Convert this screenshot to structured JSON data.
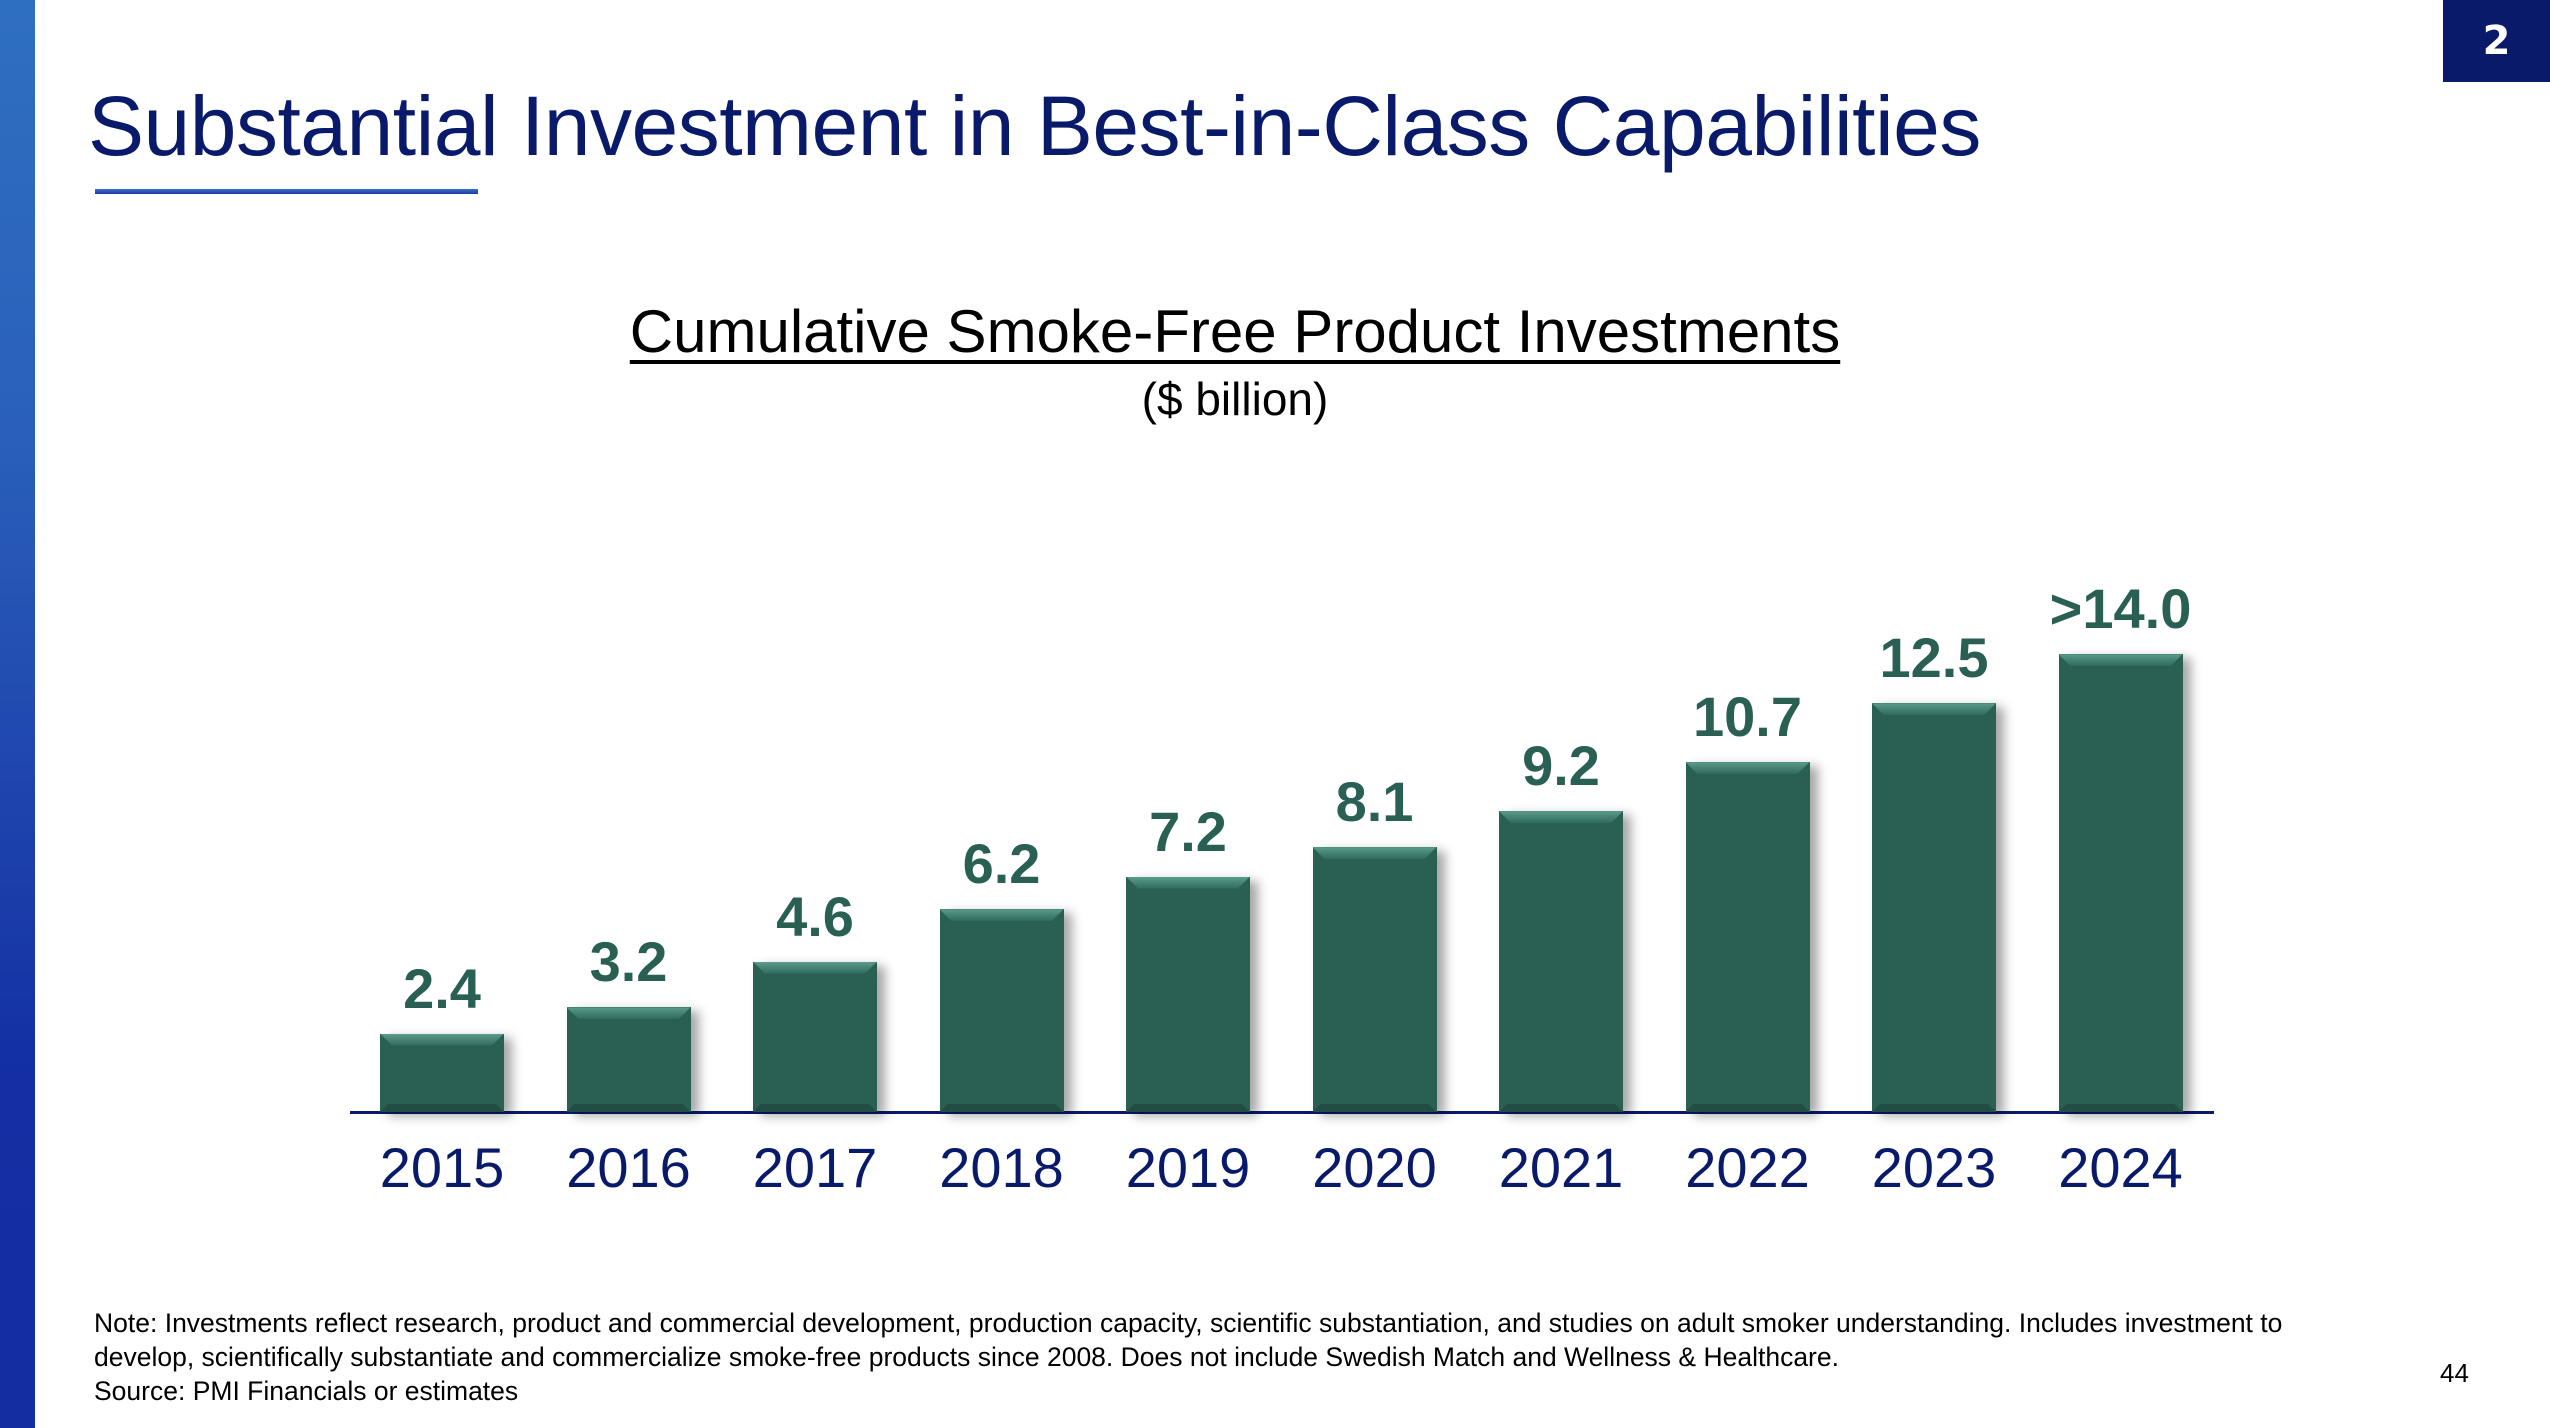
{
  "slide": {
    "title": "Substantial Investment in Best-in-Class Capabilities",
    "section_badge": "2",
    "page_number": "44",
    "colors": {
      "title": "#0a1a6b",
      "bar": "#2a5f53",
      "axis": "#0a1a6b",
      "badge_bg": "#0a1a6b",
      "left_bar_top": "#2f6fc0",
      "left_bar_bottom": "#122ea1"
    }
  },
  "chart": {
    "title": "Cumulative Smoke-Free Product Investments",
    "subtitle": "($ billion)",
    "bars": [
      {
        "year": "2015",
        "label": "2.4"
      },
      {
        "year": "2016",
        "label": "3.2"
      },
      {
        "year": "2017",
        "label": "4.6"
      },
      {
        "year": "2018",
        "label": "6.2"
      },
      {
        "year": "2019",
        "label": "7.2"
      },
      {
        "year": "2020",
        "label": "8.1"
      },
      {
        "year": "2021",
        "label": "9.2"
      },
      {
        "year": "2022",
        "label": "10.7"
      },
      {
        "year": "2023",
        "label": "12.5"
      },
      {
        "year": "2024",
        "label": ">14.0"
      }
    ]
  },
  "footer": {
    "note_line1": "Note: Investments reflect research, product and commercial development, production capacity, scientific substantiation, and studies on adult smoker understanding. Includes investment to",
    "note_line2": "develop, scientifically substantiate and commercialize smoke-free products since 2008. Does not include Swedish Match and Wellness & Healthcare.",
    "source": "Source: PMI Financials or estimates"
  },
  "chart_data": {
    "type": "bar",
    "title": "Cumulative Smoke-Free Product Investments",
    "subtitle": "($ billion)",
    "categories": [
      "2015",
      "2016",
      "2017",
      "2018",
      "2019",
      "2020",
      "2021",
      "2022",
      "2023",
      "2024"
    ],
    "values": [
      2.4,
      3.2,
      4.6,
      6.2,
      7.2,
      8.1,
      9.2,
      10.7,
      12.5,
      14.0
    ],
    "data_labels": [
      "2.4",
      "3.2",
      "4.6",
      "6.2",
      "7.2",
      "8.1",
      "9.2",
      "10.7",
      "12.5",
      ">14.0"
    ],
    "xlabel": "",
    "ylabel": "$ billion",
    "ylim": [
      0,
      15
    ],
    "grid": false,
    "legend": "none",
    "annotations": [
      "2024 value shown as >14.0"
    ]
  }
}
